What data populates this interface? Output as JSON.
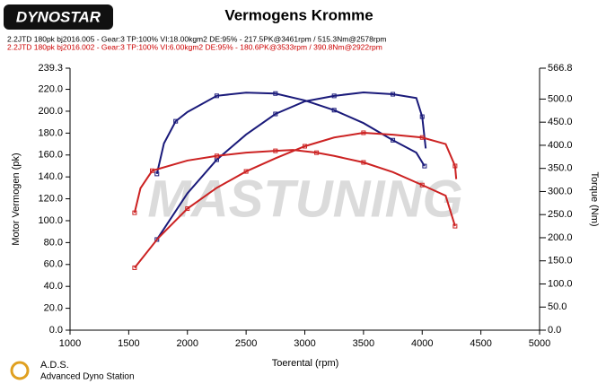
{
  "chart_data": {
    "type": "line",
    "title": "Vermogens Kromme",
    "logo": "DYNOSTAR",
    "footer": [
      "A.D.S.",
      "Advanced Dyno Station"
    ],
    "watermark": "MASTUNING",
    "legend": [
      {
        "text": "2.2JTD 180pk bj2016.005 - Gear:3 TP:100% VI:18.00kgm2 DE:95%   - 217.5PK@3461rpm / 515.3Nm@2578rpm",
        "color": "#000000"
      },
      {
        "text": "2.2JTD 180pk bj2016.002 - Gear:3 TP:100% VI:6.00kgm2 DE:95%   - 180.6PK@3533rpm / 390.8Nm@2922rpm",
        "color": "#cc0000"
      }
    ],
    "xlabel": "Toerental (rpm)",
    "ylabel": "Motor Vermogen (pk)",
    "y2label": "Torque (Nm)",
    "xlim": [
      1000,
      5000
    ],
    "xticks": [
      1000,
      1500,
      2000,
      2500,
      3000,
      3500,
      4000,
      4500,
      5000
    ],
    "ylim": [
      0,
      239.3
    ],
    "yticks": [
      {
        "value": 0,
        "label": "0.0"
      },
      {
        "value": 20,
        "label": "20.0"
      },
      {
        "value": 40,
        "label": "40.0"
      },
      {
        "value": 60,
        "label": "60.0"
      },
      {
        "value": 80,
        "label": "80.0"
      },
      {
        "value": 100,
        "label": "100.0"
      },
      {
        "value": 120,
        "label": "120.0"
      },
      {
        "value": 140,
        "label": "140.0"
      },
      {
        "value": 160,
        "label": "160.0"
      },
      {
        "value": 180,
        "label": "180.0"
      },
      {
        "value": 200,
        "label": "200.0"
      },
      {
        "value": 220,
        "label": "220.0"
      },
      239.3
    ],
    "y2lim": [
      0,
      566.8
    ],
    "y2ticks": [
      {
        "value": 0,
        "label": "0.0"
      },
      {
        "value": 50,
        "label": "50.0"
      },
      {
        "value": 100,
        "label": "100.0"
      },
      {
        "value": 150,
        "label": "150.0"
      },
      {
        "value": 200,
        "label": "200.0"
      },
      {
        "value": 250,
        "label": "250.0"
      },
      {
        "value": 300,
        "label": "300.0"
      },
      {
        "value": 350,
        "label": "350.0"
      },
      {
        "value": 400,
        "label": "400.0"
      },
      {
        "value": 450,
        "label": "450.0"
      },
      {
        "value": 500,
        "label": "500.0"
      },
      566.8
    ],
    "series": [
      {
        "color": "#1a1a7a",
        "x": [
          1740,
          2000,
          2250,
          2500,
          2750,
          3000,
          3250,
          3500,
          3750,
          3950,
          4000,
          4030
        ],
        "values": [
          82.8,
          125,
          155.7,
          178.7,
          197.5,
          209,
          214,
          217.2,
          215.5,
          212,
          195,
          166
        ]
      },
      {
        "color": "#1a1a7a",
        "axis": "y2",
        "x": [
          1740,
          1800,
          1900,
          2000,
          2250,
          2500,
          2750,
          3000,
          3250,
          3500,
          3750,
          3950,
          4020
        ],
        "values": [
          338,
          404,
          452,
          472,
          507,
          514,
          512,
          497,
          476,
          448,
          411,
          384,
          355
        ]
      },
      {
        "color": "#cc2222",
        "x": [
          1550,
          1750,
          2000,
          2250,
          2500,
          2750,
          3000,
          3250,
          3500,
          3750,
          4000,
          4200,
          4280,
          4290
        ],
        "values": [
          57,
          84,
          111,
          130,
          145,
          157,
          168,
          176,
          180.3,
          178.6,
          176,
          170,
          150,
          138
        ]
      },
      {
        "color": "#cc2222",
        "axis": "y2",
        "x": [
          1550,
          1600,
          1700,
          2000,
          2250,
          2500,
          2750,
          2900,
          3100,
          3250,
          3500,
          3750,
          4000,
          4200,
          4280
        ],
        "values": [
          254,
          307,
          345,
          367,
          377,
          384,
          388,
          390,
          384,
          377,
          363,
          342,
          314,
          291,
          225
        ]
      }
    ]
  }
}
